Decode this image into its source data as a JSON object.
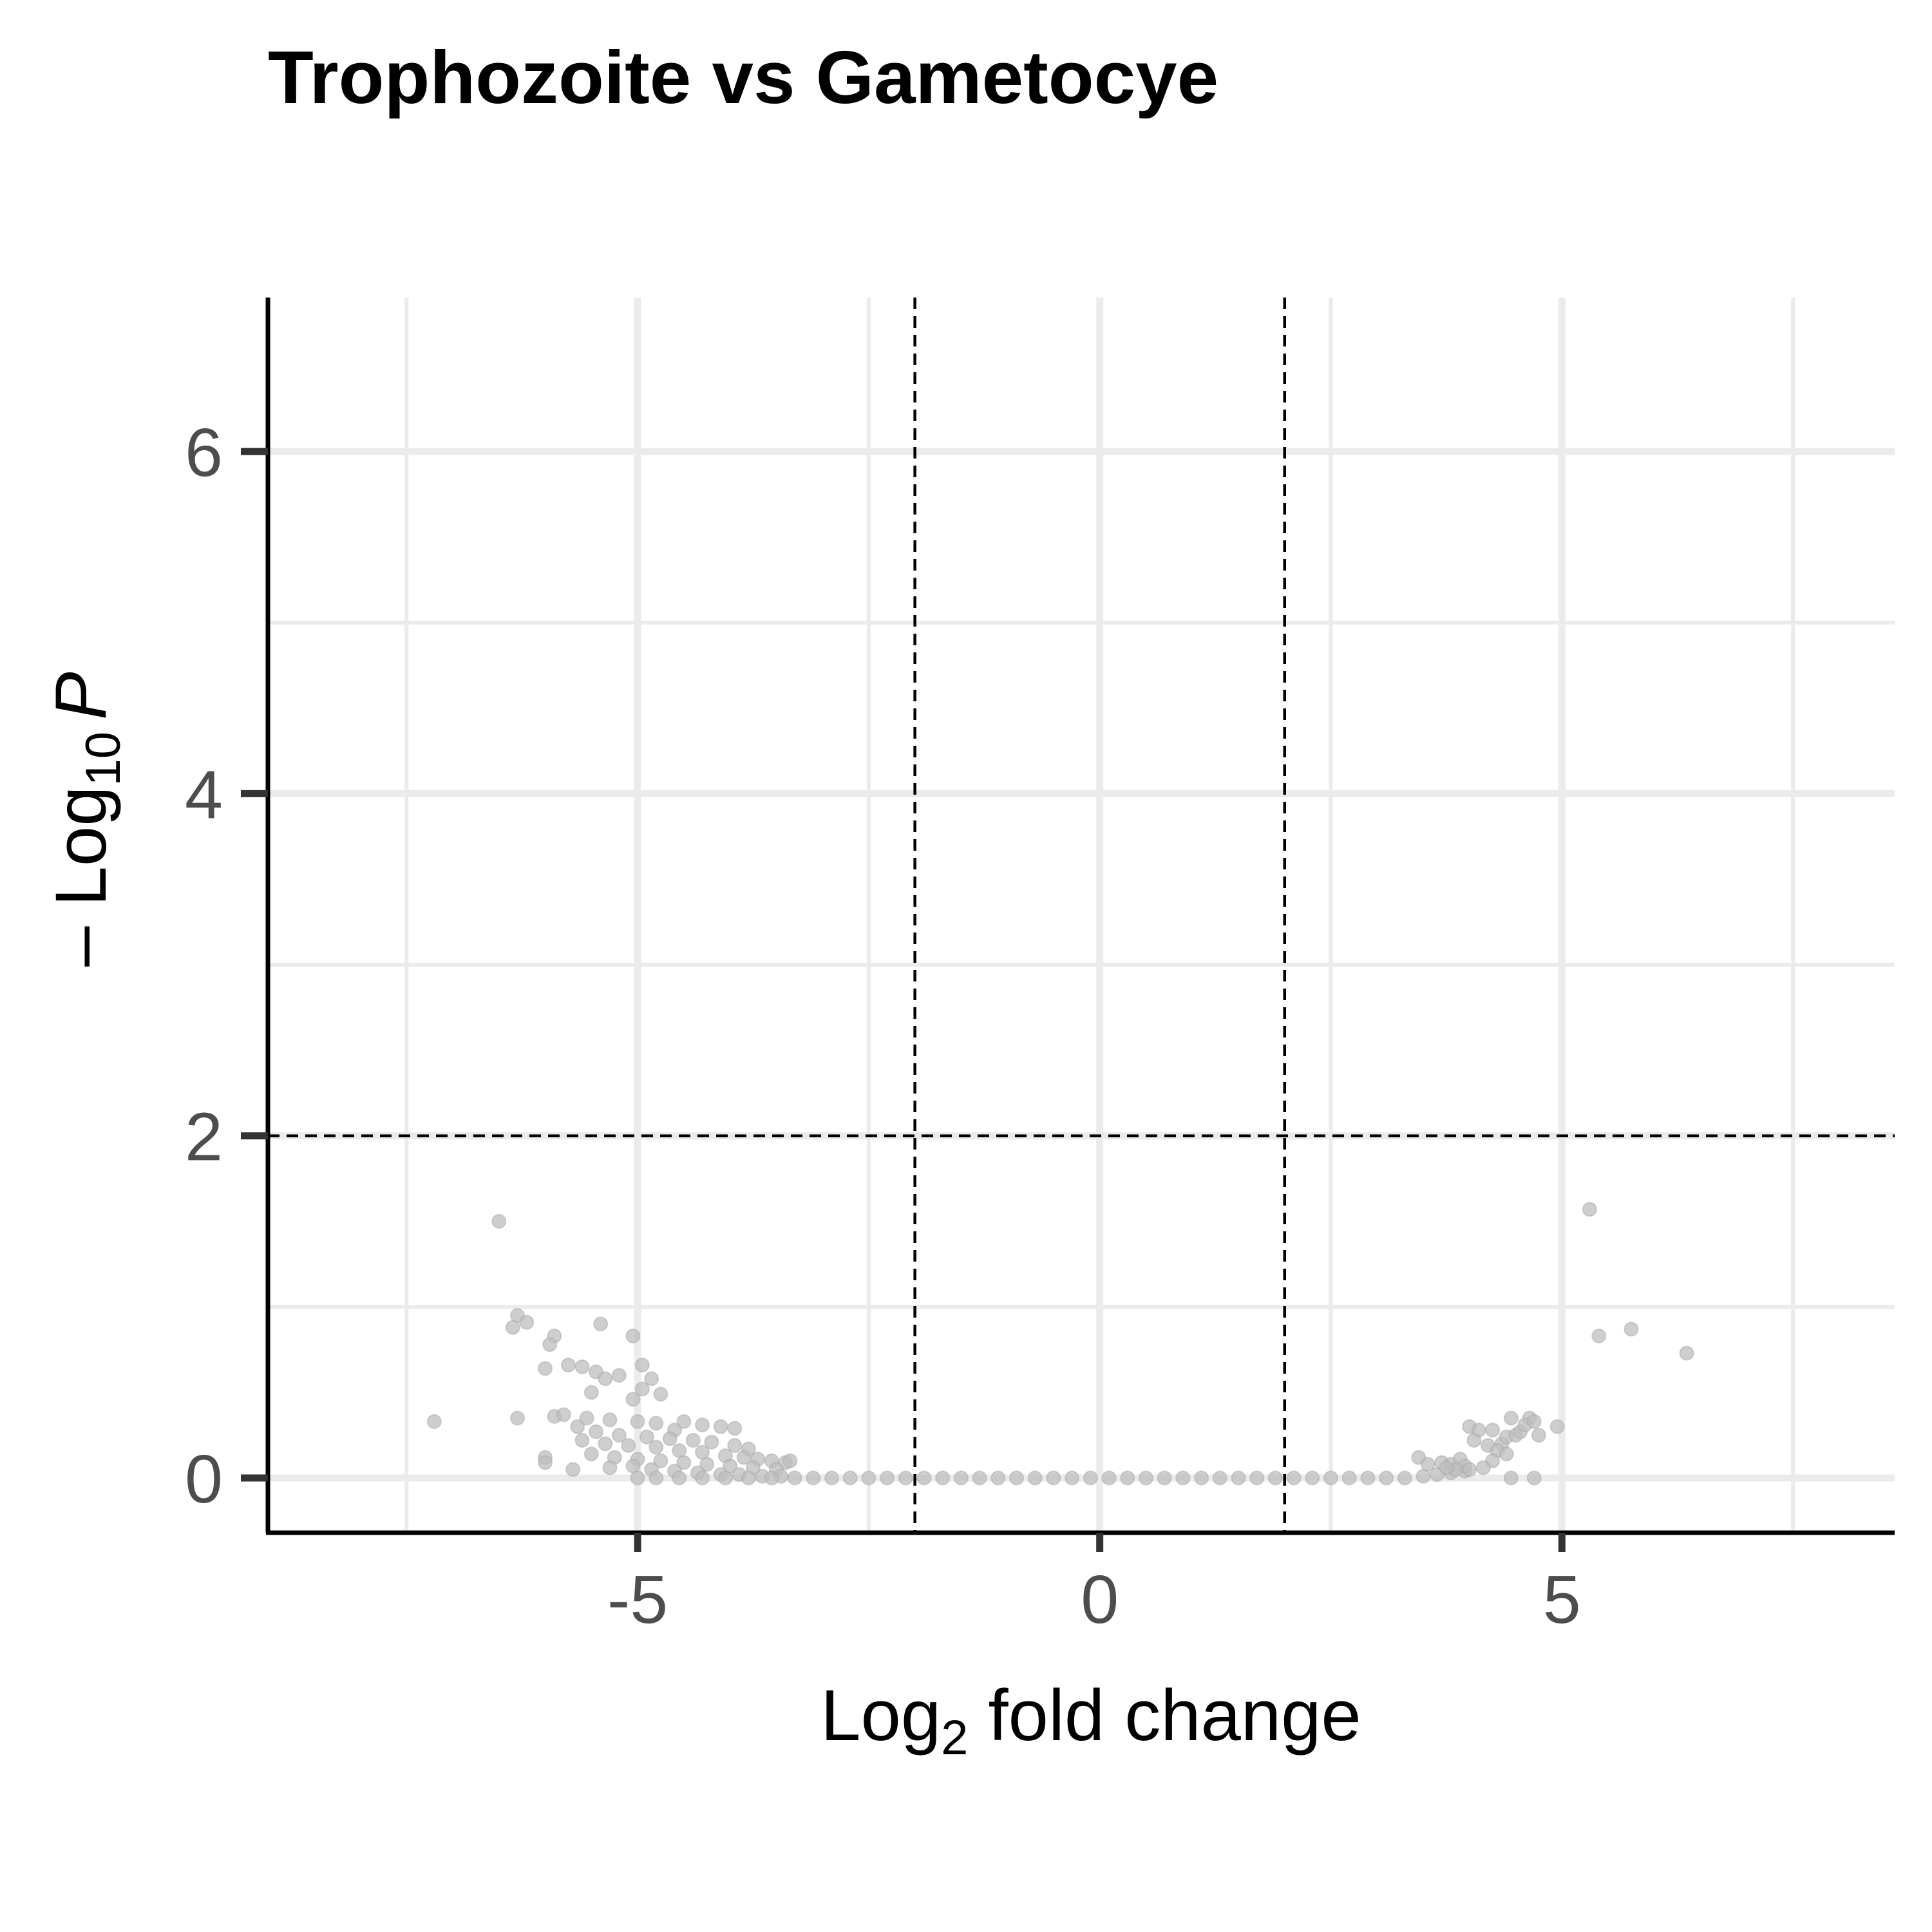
{
  "chart_data": {
    "type": "scatter",
    "title": "Trophozoite vs Gametocye",
    "xlabel_main": "Log",
    "xlabel_sub": "2",
    "xlabel_rest": " fold change",
    "ylabel_prefix": "– Log",
    "ylabel_sub": "10",
    "ylabel_italic": "P",
    "xlim": [
      -9.0,
      8.6
    ],
    "ylim": [
      -0.32,
      6.9
    ],
    "x_ticks": [
      -5,
      0,
      5
    ],
    "x_tick_labels": [
      "-5",
      "0",
      "5"
    ],
    "x_minor_gridlines": [
      -7.5,
      -2.5,
      2.5,
      7.5
    ],
    "y_ticks": [
      0,
      2,
      4,
      6
    ],
    "y_tick_labels": [
      "0",
      "2",
      "4",
      "6"
    ],
    "y_minor_gridlines": [
      1,
      3,
      5
    ],
    "fc_cutoff_lines": [
      -2,
      2
    ],
    "p_cutoff_line": 2,
    "grid": true,
    "point_color": "#bdbdbd",
    "series": [
      {
        "points": [
          {
            "x": -6.5,
            "y": 1.5
          },
          {
            "x": -7.2,
            "y": 0.33
          },
          {
            "x": -6.3,
            "y": 0.95
          },
          {
            "x": -6.2,
            "y": 0.91
          },
          {
            "x": -6.35,
            "y": 0.88
          },
          {
            "x": -5.9,
            "y": 0.83
          },
          {
            "x": -5.4,
            "y": 0.9
          },
          {
            "x": -5.05,
            "y": 0.83
          },
          {
            "x": -5.95,
            "y": 0.78
          },
          {
            "x": -5.6,
            "y": 0.65
          },
          {
            "x": -5.45,
            "y": 0.62
          },
          {
            "x": -5.75,
            "y": 0.66
          },
          {
            "x": -4.95,
            "y": 0.66
          },
          {
            "x": -6.0,
            "y": 0.64
          },
          {
            "x": -5.35,
            "y": 0.58
          },
          {
            "x": -5.2,
            "y": 0.6
          },
          {
            "x": -4.85,
            "y": 0.58
          },
          {
            "x": -4.95,
            "y": 0.52
          },
          {
            "x": -4.75,
            "y": 0.49
          },
          {
            "x": -5.05,
            "y": 0.46
          },
          {
            "x": -5.5,
            "y": 0.5
          },
          {
            "x": -6.3,
            "y": 0.35
          },
          {
            "x": -5.9,
            "y": 0.36
          },
          {
            "x": -5.8,
            "y": 0.37
          },
          {
            "x": -5.55,
            "y": 0.35
          },
          {
            "x": -5.3,
            "y": 0.34
          },
          {
            "x": -5.0,
            "y": 0.33
          },
          {
            "x": -4.8,
            "y": 0.32
          },
          {
            "x": -4.5,
            "y": 0.33
          },
          {
            "x": -4.3,
            "y": 0.31
          },
          {
            "x": -4.1,
            "y": 0.3
          },
          {
            "x": -3.95,
            "y": 0.29
          },
          {
            "x": -4.6,
            "y": 0.28
          },
          {
            "x": -5.65,
            "y": 0.3
          },
          {
            "x": -5.45,
            "y": 0.27
          },
          {
            "x": -5.2,
            "y": 0.25
          },
          {
            "x": -4.9,
            "y": 0.24
          },
          {
            "x": -4.65,
            "y": 0.23
          },
          {
            "x": -4.4,
            "y": 0.22
          },
          {
            "x": -4.2,
            "y": 0.21
          },
          {
            "x": -3.95,
            "y": 0.19
          },
          {
            "x": -3.8,
            "y": 0.17
          },
          {
            "x": -5.6,
            "y": 0.22
          },
          {
            "x": -5.35,
            "y": 0.2
          },
          {
            "x": -5.1,
            "y": 0.19
          },
          {
            "x": -4.8,
            "y": 0.18
          },
          {
            "x": -4.55,
            "y": 0.16
          },
          {
            "x": -4.3,
            "y": 0.15
          },
          {
            "x": -4.05,
            "y": 0.13
          },
          {
            "x": -3.85,
            "y": 0.12
          },
          {
            "x": -3.7,
            "y": 0.11
          },
          {
            "x": -3.55,
            "y": 0.1
          },
          {
            "x": -3.4,
            "y": 0.09
          },
          {
            "x": -3.35,
            "y": 0.1
          },
          {
            "x": -6.0,
            "y": 0.12
          },
          {
            "x": -6.0,
            "y": 0.09
          },
          {
            "x": -5.7,
            "y": 0.05
          },
          {
            "x": -5.5,
            "y": 0.14
          },
          {
            "x": -5.25,
            "y": 0.12
          },
          {
            "x": -5.0,
            "y": 0.11
          },
          {
            "x": -4.75,
            "y": 0.1
          },
          {
            "x": -4.5,
            "y": 0.09
          },
          {
            "x": -4.25,
            "y": 0.08
          },
          {
            "x": -4.0,
            "y": 0.07
          },
          {
            "x": -3.75,
            "y": 0.06
          },
          {
            "x": -3.5,
            "y": 0.05
          },
          {
            "x": -5.3,
            "y": 0.06
          },
          {
            "x": -5.05,
            "y": 0.07
          },
          {
            "x": -4.85,
            "y": 0.05
          },
          {
            "x": -4.6,
            "y": 0.04
          },
          {
            "x": -4.35,
            "y": 0.03
          },
          {
            "x": -4.1,
            "y": 0.02
          },
          {
            "x": -3.9,
            "y": 0.02
          },
          {
            "x": -3.65,
            "y": 0.01
          },
          {
            "x": -3.45,
            "y": 0.01
          },
          {
            "x": -5.0,
            "y": 0.0
          },
          {
            "x": -4.8,
            "y": 0.0
          },
          {
            "x": -4.55,
            "y": 0.0
          },
          {
            "x": -4.3,
            "y": 0.0
          },
          {
            "x": -4.05,
            "y": 0.0
          },
          {
            "x": -3.8,
            "y": 0.0
          },
          {
            "x": -3.55,
            "y": 0.0
          },
          {
            "x": -3.3,
            "y": 0.0
          },
          {
            "x": -3.1,
            "y": 0.0
          },
          {
            "x": -2.9,
            "y": 0.0
          },
          {
            "x": -2.7,
            "y": 0.0
          },
          {
            "x": -2.5,
            "y": 0.0
          },
          {
            "x": -2.3,
            "y": 0.0
          },
          {
            "x": -2.1,
            "y": 0.0
          },
          {
            "x": -1.9,
            "y": 0.0
          },
          {
            "x": -1.7,
            "y": 0.0
          },
          {
            "x": -1.5,
            "y": 0.0
          },
          {
            "x": -1.3,
            "y": 0.0
          },
          {
            "x": -1.1,
            "y": 0.0
          },
          {
            "x": -0.9,
            "y": 0.0
          },
          {
            "x": -0.7,
            "y": 0.0
          },
          {
            "x": -0.5,
            "y": 0.0
          },
          {
            "x": -0.3,
            "y": 0.0
          },
          {
            "x": -0.1,
            "y": 0.0
          },
          {
            "x": 0.1,
            "y": 0.0
          },
          {
            "x": 0.3,
            "y": 0.0
          },
          {
            "x": 0.5,
            "y": 0.0
          },
          {
            "x": 0.7,
            "y": 0.0
          },
          {
            "x": 0.9,
            "y": 0.0
          },
          {
            "x": 1.1,
            "y": 0.0
          },
          {
            "x": 1.3,
            "y": 0.0
          },
          {
            "x": 1.5,
            "y": 0.0
          },
          {
            "x": 1.7,
            "y": 0.0
          },
          {
            "x": 1.9,
            "y": 0.0
          },
          {
            "x": 2.1,
            "y": 0.0
          },
          {
            "x": 2.3,
            "y": 0.0
          },
          {
            "x": 2.5,
            "y": 0.0
          },
          {
            "x": 2.7,
            "y": 0.0
          },
          {
            "x": 2.9,
            "y": 0.0
          },
          {
            "x": 3.1,
            "y": 0.0
          },
          {
            "x": 3.3,
            "y": 0.0
          },
          {
            "x": 3.5,
            "y": 0.01
          },
          {
            "x": 3.65,
            "y": 0.02
          },
          {
            "x": 3.8,
            "y": 0.03
          },
          {
            "x": 3.95,
            "y": 0.04
          },
          {
            "x": 3.45,
            "y": 0.12
          },
          {
            "x": 3.55,
            "y": 0.08
          },
          {
            "x": 3.7,
            "y": 0.09
          },
          {
            "x": 3.8,
            "y": 0.08
          },
          {
            "x": 3.9,
            "y": 0.11
          },
          {
            "x": 3.95,
            "y": 0.07
          },
          {
            "x": 4.0,
            "y": 0.05
          },
          {
            "x": 3.85,
            "y": 0.05
          },
          {
            "x": 3.75,
            "y": 0.06
          },
          {
            "x": 4.0,
            "y": 0.3
          },
          {
            "x": 4.1,
            "y": 0.28
          },
          {
            "x": 4.25,
            "y": 0.28
          },
          {
            "x": 4.05,
            "y": 0.22
          },
          {
            "x": 4.2,
            "y": 0.19
          },
          {
            "x": 4.35,
            "y": 0.2
          },
          {
            "x": 4.4,
            "y": 0.24
          },
          {
            "x": 4.5,
            "y": 0.25
          },
          {
            "x": 4.55,
            "y": 0.27
          },
          {
            "x": 4.45,
            "y": 0.35
          },
          {
            "x": 4.65,
            "y": 0.35
          },
          {
            "x": 4.6,
            "y": 0.31
          },
          {
            "x": 4.7,
            "y": 0.33
          },
          {
            "x": 4.75,
            "y": 0.25
          },
          {
            "x": 4.3,
            "y": 0.16
          },
          {
            "x": 4.4,
            "y": 0.14
          },
          {
            "x": 4.25,
            "y": 0.1
          },
          {
            "x": 4.15,
            "y": 0.06
          },
          {
            "x": 4.45,
            "y": 0.0
          },
          {
            "x": 4.7,
            "y": 0.0
          },
          {
            "x": 4.95,
            "y": 0.3
          },
          {
            "x": 5.3,
            "y": 1.57
          },
          {
            "x": 5.4,
            "y": 0.83
          },
          {
            "x": 5.75,
            "y": 0.87
          },
          {
            "x": 6.35,
            "y": 0.73
          }
        ]
      }
    ]
  }
}
